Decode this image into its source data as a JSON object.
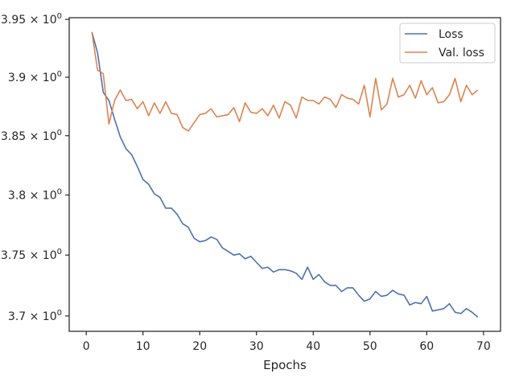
{
  "chart_data": {
    "type": "line",
    "title": "",
    "xlabel": "Epochs",
    "ylabel": "",
    "xlim": [
      -3,
      73
    ],
    "ylim": [
      3.6875,
      3.9515
    ],
    "y_scale": "log",
    "grid": false,
    "legend_position": "top-right",
    "x_ticks": [
      0,
      10,
      20,
      30,
      40,
      50,
      60,
      70
    ],
    "x_tick_labels": [
      "0",
      "10",
      "20",
      "30",
      "40",
      "50",
      "60",
      "70"
    ],
    "y_ticks": [
      3.7,
      3.75,
      3.8,
      3.85,
      3.9,
      3.95
    ],
    "y_tick_mantissas": [
      "3.7",
      "3.75",
      "3.8",
      "3.85",
      "3.9",
      "3.95"
    ],
    "y_tick_suffix": "× 10",
    "y_tick_exponent": "0",
    "series": [
      {
        "name": "Loss",
        "color": "#4c72b0",
        "x": [
          1,
          2,
          3,
          4,
          5,
          6,
          7,
          8,
          9,
          10,
          11,
          12,
          13,
          14,
          15,
          16,
          17,
          18,
          19,
          20,
          21,
          22,
          23,
          24,
          25,
          26,
          27,
          28,
          29,
          30,
          31,
          32,
          33,
          34,
          35,
          36,
          37,
          38,
          39,
          40,
          41,
          42,
          43,
          44,
          45,
          46,
          47,
          48,
          49,
          50,
          51,
          52,
          53,
          54,
          55,
          56,
          57,
          58,
          59,
          60,
          61,
          62,
          63,
          64,
          65,
          66,
          67,
          68,
          69
        ],
        "values": [
          3.939,
          3.921,
          3.887,
          3.88,
          3.864,
          3.849,
          3.839,
          3.834,
          3.824,
          3.813,
          3.809,
          3.801,
          3.798,
          3.789,
          3.789,
          3.784,
          3.776,
          3.773,
          3.764,
          3.761,
          3.762,
          3.765,
          3.763,
          3.756,
          3.753,
          3.75,
          3.751,
          3.747,
          3.749,
          3.744,
          3.739,
          3.74,
          3.736,
          3.738,
          3.738,
          3.737,
          3.735,
          3.73,
          3.74,
          3.73,
          3.734,
          3.728,
          3.725,
          3.725,
          3.72,
          3.723,
          3.723,
          3.717,
          3.712,
          3.714,
          3.72,
          3.716,
          3.717,
          3.721,
          3.718,
          3.717,
          3.709,
          3.711,
          3.71,
          3.716,
          3.704,
          3.705,
          3.706,
          3.71,
          3.703,
          3.702,
          3.706,
          3.703,
          3.699
        ]
      },
      {
        "name": "Val. loss",
        "color": "#dd8452",
        "x": [
          1,
          2,
          3,
          4,
          5,
          6,
          7,
          8,
          9,
          10,
          11,
          12,
          13,
          14,
          15,
          16,
          17,
          18,
          19,
          20,
          21,
          22,
          23,
          24,
          25,
          26,
          27,
          28,
          29,
          30,
          31,
          32,
          33,
          34,
          35,
          36,
          37,
          38,
          39,
          40,
          41,
          42,
          43,
          44,
          45,
          46,
          47,
          48,
          49,
          50,
          51,
          52,
          53,
          54,
          55,
          56,
          57,
          58,
          59,
          60,
          61,
          62,
          63,
          64,
          65,
          66,
          67,
          68,
          69
        ],
        "values": [
          3.939,
          3.906,
          3.903,
          3.86,
          3.88,
          3.889,
          3.88,
          3.881,
          3.873,
          3.879,
          3.867,
          3.878,
          3.869,
          3.879,
          3.869,
          3.868,
          3.857,
          3.854,
          3.861,
          3.868,
          3.869,
          3.873,
          3.866,
          3.867,
          3.868,
          3.874,
          3.862,
          3.878,
          3.87,
          3.869,
          3.873,
          3.867,
          3.876,
          3.865,
          3.879,
          3.876,
          3.865,
          3.883,
          3.88,
          3.88,
          3.877,
          3.883,
          3.881,
          3.874,
          3.885,
          3.882,
          3.881,
          3.877,
          3.893,
          3.866,
          3.899,
          3.872,
          3.877,
          3.899,
          3.883,
          3.885,
          3.893,
          3.882,
          3.897,
          3.885,
          3.891,
          3.878,
          3.879,
          3.885,
          3.899,
          3.879,
          3.893,
          3.885,
          3.889
        ]
      }
    ]
  }
}
